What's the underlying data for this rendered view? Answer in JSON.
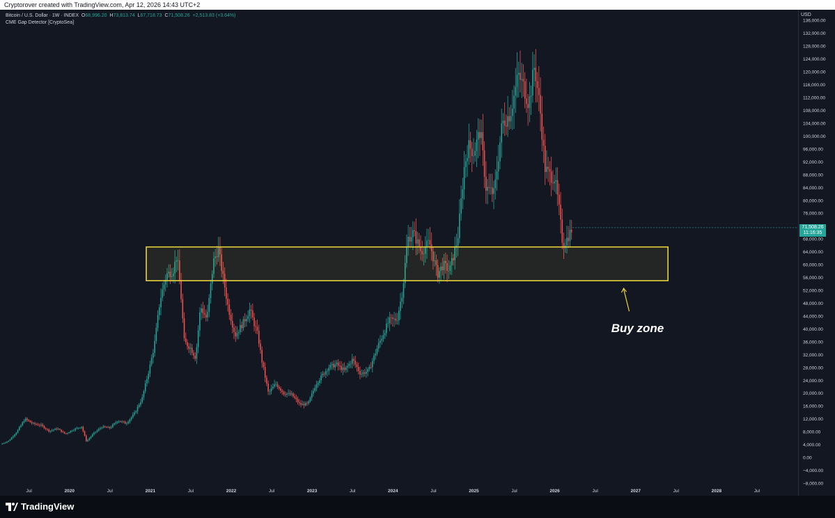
{
  "header": {
    "caption": "Cryptorover created with TradingView.com, Apr 12, 2026 14:43 UTC+2"
  },
  "legend": {
    "symbol": "Bitcoin / U.S. Dollar · 1W · INDEX",
    "open_label": "O",
    "open": "68,996.20",
    "high_label": "H",
    "high": "73,813.74",
    "low_label": "L",
    "low": "67,718.73",
    "close_label": "C",
    "close": "71,508.26",
    "change": "+2,513.83 (+3.64%)",
    "indicator": "CME Gap Detector [CryptoSea]"
  },
  "price_axis": {
    "currency": "USD",
    "last_price": "71,508.26",
    "countdown": "11:16:35"
  },
  "annotation": {
    "label": "Buy zone"
  },
  "footer": {
    "brand": "TradingView"
  },
  "colors": {
    "background": "#131722",
    "up": "#26a69a",
    "down": "#ef5350",
    "zone_border": "#e8d33a",
    "text": "#d1d4dc"
  },
  "chart_data": {
    "type": "candlestick",
    "interval": "1W",
    "ylim": [
      -8000,
      138000
    ],
    "y_ticks": [
      "136,000.00",
      "132,000.00",
      "128,000.00",
      "124,000.00",
      "120,000.00",
      "116,000.00",
      "112,000.00",
      "108,000.00",
      "104,000.00",
      "100,000.00",
      "96,000.00",
      "92,000.00",
      "88,000.00",
      "84,000.00",
      "80,000.00",
      "76,000.00",
      "72,000.00",
      "68,000.00",
      "64,000.00",
      "60,000.00",
      "56,000.00",
      "52,000.00",
      "48,000.00",
      "44,000.00",
      "40,000.00",
      "36,000.00",
      "32,000.00",
      "28,000.00",
      "24,000.00",
      "20,000.00",
      "16,000.00",
      "12,000.00",
      "8,000.00",
      "4,000.00",
      "0.00",
      "−4,000.00",
      "−8,000.00"
    ],
    "y_tick_values": [
      136000,
      132000,
      128000,
      124000,
      120000,
      116000,
      112000,
      108000,
      104000,
      100000,
      96000,
      92000,
      88000,
      84000,
      80000,
      76000,
      72000,
      68000,
      64000,
      60000,
      56000,
      52000,
      48000,
      44000,
      40000,
      36000,
      32000,
      28000,
      24000,
      20000,
      16000,
      12000,
      8000,
      4000,
      0,
      -4000,
      -8000
    ],
    "x_ticks": [
      {
        "label": "Jul",
        "t": 2019.5
      },
      {
        "label": "2020",
        "t": 2020.0
      },
      {
        "label": "Jul",
        "t": 2020.5
      },
      {
        "label": "2021",
        "t": 2021.0
      },
      {
        "label": "Jul",
        "t": 2021.5
      },
      {
        "label": "2022",
        "t": 2022.0
      },
      {
        "label": "Jul",
        "t": 2022.5
      },
      {
        "label": "2023",
        "t": 2023.0
      },
      {
        "label": "Jul",
        "t": 2023.5
      },
      {
        "label": "2024",
        "t": 2024.0
      },
      {
        "label": "Jul",
        "t": 2024.5
      },
      {
        "label": "2025",
        "t": 2025.0
      },
      {
        "label": "Jul",
        "t": 2025.5
      },
      {
        "label": "2026",
        "t": 2026.0
      },
      {
        "label": "Jul",
        "t": 2026.5
      },
      {
        "label": "2027",
        "t": 2027.0
      },
      {
        "label": "Jul",
        "t": 2027.5
      },
      {
        "label": "2028",
        "t": 2028.0
      },
      {
        "label": "Jul",
        "t": 2028.5
      }
    ],
    "xlim": [
      2019.15,
      2029.0
    ],
    "price_path": [
      [
        2019.15,
        4100
      ],
      [
        2019.25,
        5200
      ],
      [
        2019.35,
        8000
      ],
      [
        2019.45,
        12000
      ],
      [
        2019.55,
        10500
      ],
      [
        2019.65,
        10000
      ],
      [
        2019.75,
        8200
      ],
      [
        2019.85,
        9000
      ],
      [
        2019.95,
        7300
      ],
      [
        2020.05,
        8700
      ],
      [
        2020.15,
        9600
      ],
      [
        2020.21,
        5000
      ],
      [
        2020.3,
        7500
      ],
      [
        2020.4,
        9500
      ],
      [
        2020.5,
        9200
      ],
      [
        2020.6,
        11500
      ],
      [
        2020.7,
        10600
      ],
      [
        2020.8,
        13500
      ],
      [
        2020.9,
        18500
      ],
      [
        2021.0,
        29000
      ],
      [
        2021.05,
        35000
      ],
      [
        2021.12,
        49000
      ],
      [
        2021.2,
        57000
      ],
      [
        2021.28,
        58000
      ],
      [
        2021.33,
        63000
      ],
      [
        2021.38,
        50000
      ],
      [
        2021.42,
        36000
      ],
      [
        2021.5,
        34000
      ],
      [
        2021.56,
        31000
      ],
      [
        2021.62,
        47000
      ],
      [
        2021.7,
        43000
      ],
      [
        2021.78,
        61000
      ],
      [
        2021.84,
        65000
      ],
      [
        2021.9,
        56000
      ],
      [
        2021.96,
        47000
      ],
      [
        2022.05,
        38000
      ],
      [
        2022.15,
        42000
      ],
      [
        2022.23,
        46000
      ],
      [
        2022.33,
        38000
      ],
      [
        2022.38,
        30000
      ],
      [
        2022.46,
        20000
      ],
      [
        2022.55,
        23000
      ],
      [
        2022.65,
        20000
      ],
      [
        2022.75,
        19500
      ],
      [
        2022.85,
        16500
      ],
      [
        2022.95,
        16600
      ],
      [
        2023.05,
        23000
      ],
      [
        2023.2,
        28000
      ],
      [
        2023.3,
        29000
      ],
      [
        2023.4,
        27000
      ],
      [
        2023.5,
        30500
      ],
      [
        2023.6,
        26000
      ],
      [
        2023.7,
        27000
      ],
      [
        2023.82,
        35000
      ],
      [
        2023.95,
        42500
      ],
      [
        2024.05,
        43000
      ],
      [
        2024.12,
        52000
      ],
      [
        2024.18,
        68000
      ],
      [
        2024.25,
        70000
      ],
      [
        2024.35,
        64000
      ],
      [
        2024.45,
        67000
      ],
      [
        2024.55,
        57000
      ],
      [
        2024.62,
        60000
      ],
      [
        2024.7,
        58000
      ],
      [
        2024.8,
        68000
      ],
      [
        2024.88,
        90000
      ],
      [
        2024.93,
        97000
      ],
      [
        2025.0,
        95000
      ],
      [
        2025.08,
        102000
      ],
      [
        2025.15,
        84000
      ],
      [
        2025.25,
        82000
      ],
      [
        2025.35,
        104000
      ],
      [
        2025.45,
        107000
      ],
      [
        2025.55,
        119000
      ],
      [
        2025.62,
        115000
      ],
      [
        2025.68,
        110000
      ],
      [
        2025.75,
        122000
      ],
      [
        2025.82,
        108000
      ],
      [
        2025.88,
        90000
      ],
      [
        2025.93,
        88000
      ],
      [
        2026.0,
        87000
      ],
      [
        2026.05,
        78000
      ],
      [
        2026.1,
        66000
      ],
      [
        2026.15,
        68000
      ],
      [
        2026.22,
        71500
      ]
    ],
    "zones": [
      {
        "x0": 2020.95,
        "x1": 2027.4,
        "y0": 55000,
        "y1": 65500,
        "label_ref": "annotation.label"
      }
    ]
  }
}
